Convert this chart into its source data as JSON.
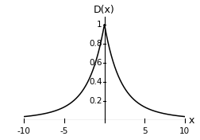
{
  "title": "D(x)",
  "xlabel": "x",
  "xlim": [
    -10,
    10
  ],
  "ylim": [
    0,
    1.08
  ],
  "xticks": [
    -10,
    -5,
    5,
    10
  ],
  "yticks": [
    0.2,
    0.4,
    0.6,
    0.8,
    1
  ],
  "ytick_labels": [
    "0.2",
    "0.4",
    "0.6",
    "0.8",
    "1"
  ],
  "curve_color": "#000000",
  "bg_color": "#ffffff",
  "alpha1": 0.55,
  "alpha2": 0.18,
  "weight2": 0.22,
  "line_width": 1.1,
  "title_fontsize": 9,
  "tick_fontsize": 7.5,
  "xlabel_fontsize": 9
}
